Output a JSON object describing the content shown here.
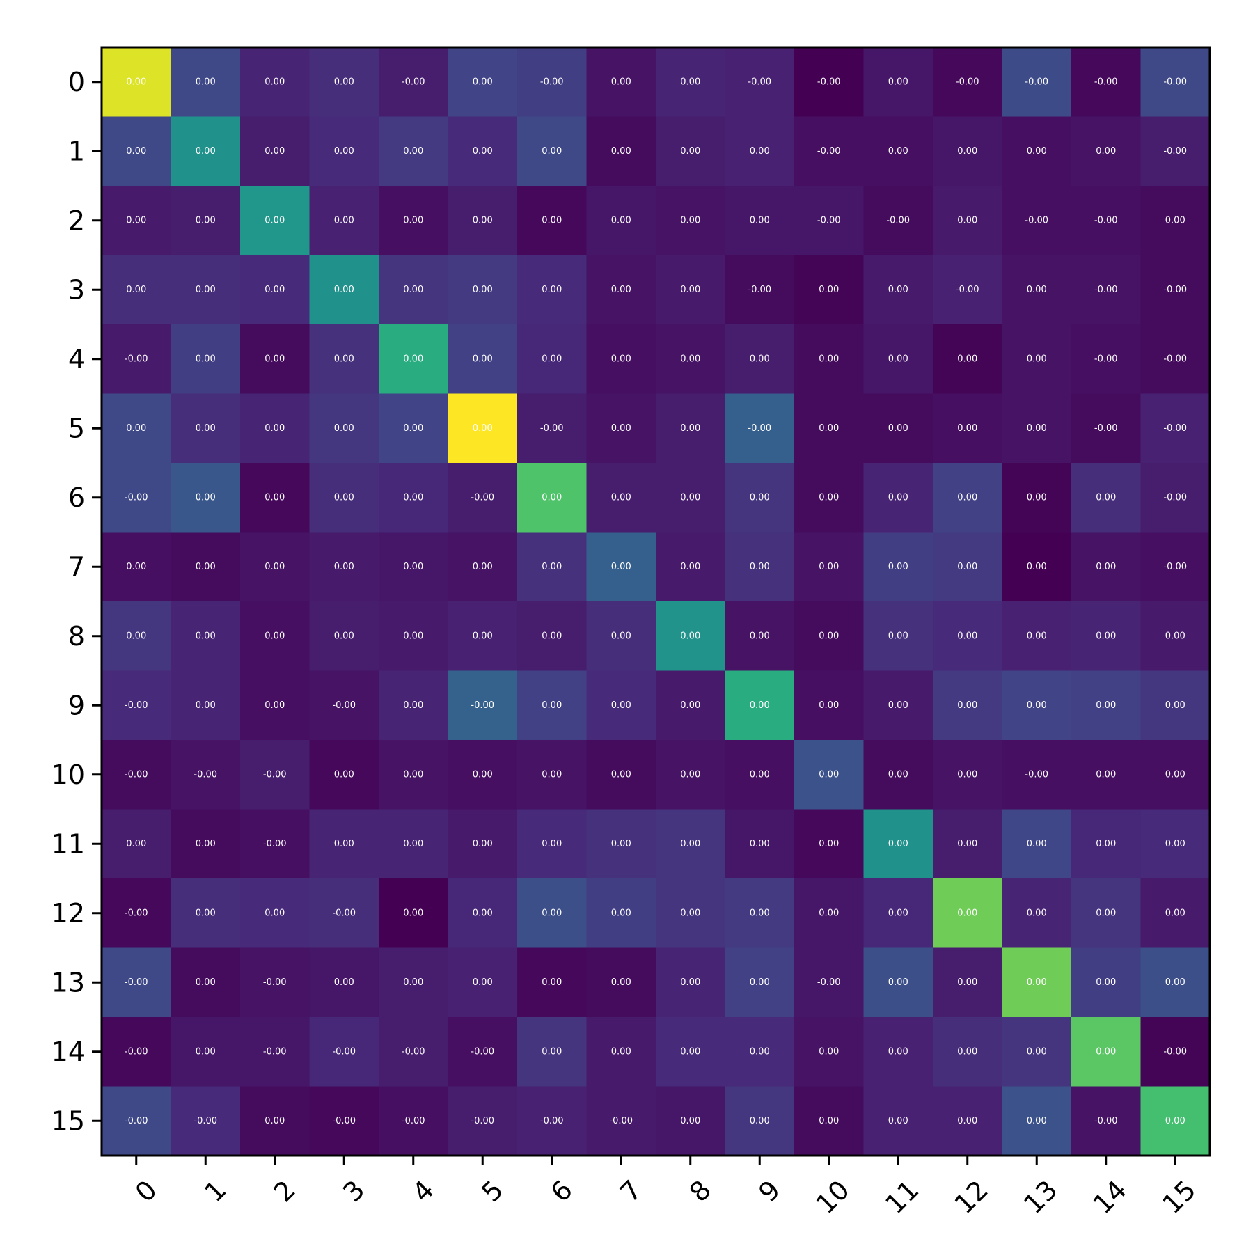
{
  "chart_data": {
    "type": "heatmap",
    "colormap": "viridis",
    "x_categories": [
      "0",
      "1",
      "2",
      "3",
      "4",
      "5",
      "6",
      "7",
      "8",
      "9",
      "10",
      "11",
      "12",
      "13",
      "14",
      "15"
    ],
    "y_categories": [
      "0",
      "1",
      "2",
      "3",
      "4",
      "5",
      "6",
      "7",
      "8",
      "9",
      "10",
      "11",
      "12",
      "13",
      "14",
      "15"
    ],
    "x_tick_rotation_deg": -45,
    "grid": false,
    "legend": "none",
    "intensity": [
      [
        0.95,
        0.22,
        0.1,
        0.13,
        0.08,
        0.2,
        0.18,
        0.05,
        0.1,
        0.09,
        0.0,
        0.06,
        0.02,
        0.23,
        0.02,
        0.22
      ],
      [
        0.22,
        0.5,
        0.08,
        0.12,
        0.17,
        0.12,
        0.22,
        0.03,
        0.08,
        0.09,
        0.04,
        0.04,
        0.06,
        0.04,
        0.05,
        0.08
      ],
      [
        0.07,
        0.08,
        0.52,
        0.09,
        0.04,
        0.08,
        0.02,
        0.06,
        0.05,
        0.06,
        0.06,
        0.03,
        0.07,
        0.04,
        0.04,
        0.03
      ],
      [
        0.13,
        0.13,
        0.12,
        0.5,
        0.15,
        0.17,
        0.12,
        0.05,
        0.07,
        0.03,
        0.01,
        0.07,
        0.09,
        0.05,
        0.05,
        0.03
      ],
      [
        0.07,
        0.18,
        0.03,
        0.14,
        0.62,
        0.19,
        0.11,
        0.04,
        0.05,
        0.08,
        0.03,
        0.06,
        0.01,
        0.05,
        0.04,
        0.03
      ],
      [
        0.22,
        0.13,
        0.1,
        0.16,
        0.2,
        1.0,
        0.08,
        0.05,
        0.08,
        0.3,
        0.03,
        0.03,
        0.04,
        0.05,
        0.03,
        0.09
      ],
      [
        0.22,
        0.27,
        0.02,
        0.13,
        0.11,
        0.08,
        0.72,
        0.08,
        0.08,
        0.15,
        0.03,
        0.1,
        0.19,
        0.01,
        0.13,
        0.08
      ],
      [
        0.04,
        0.03,
        0.05,
        0.07,
        0.06,
        0.05,
        0.14,
        0.3,
        0.07,
        0.14,
        0.05,
        0.18,
        0.17,
        0.0,
        0.05,
        0.04
      ],
      [
        0.16,
        0.1,
        0.04,
        0.08,
        0.07,
        0.09,
        0.08,
        0.13,
        0.51,
        0.05,
        0.03,
        0.14,
        0.12,
        0.09,
        0.1,
        0.07
      ],
      [
        0.12,
        0.1,
        0.04,
        0.05,
        0.1,
        0.31,
        0.19,
        0.12,
        0.07,
        0.62,
        0.04,
        0.07,
        0.17,
        0.2,
        0.19,
        0.16
      ],
      [
        0.03,
        0.05,
        0.08,
        0.02,
        0.05,
        0.04,
        0.05,
        0.03,
        0.05,
        0.04,
        0.25,
        0.03,
        0.05,
        0.04,
        0.04,
        0.04
      ],
      [
        0.08,
        0.03,
        0.04,
        0.1,
        0.1,
        0.07,
        0.12,
        0.14,
        0.15,
        0.06,
        0.02,
        0.5,
        0.08,
        0.21,
        0.11,
        0.12
      ],
      [
        0.02,
        0.13,
        0.12,
        0.13,
        0.0,
        0.11,
        0.24,
        0.18,
        0.15,
        0.17,
        0.06,
        0.11,
        0.78,
        0.1,
        0.15,
        0.07
      ],
      [
        0.22,
        0.03,
        0.05,
        0.06,
        0.08,
        0.09,
        0.02,
        0.03,
        0.1,
        0.19,
        0.06,
        0.24,
        0.08,
        0.78,
        0.18,
        0.24
      ],
      [
        0.02,
        0.06,
        0.06,
        0.11,
        0.08,
        0.04,
        0.15,
        0.07,
        0.12,
        0.12,
        0.05,
        0.09,
        0.13,
        0.15,
        0.74,
        0.01
      ],
      [
        0.22,
        0.12,
        0.03,
        0.02,
        0.04,
        0.08,
        0.09,
        0.07,
        0.06,
        0.16,
        0.03,
        0.09,
        0.09,
        0.25,
        0.05,
        0.7
      ]
    ],
    "cell_labels": [
      [
        "0.00",
        "0.00",
        "0.00",
        "0.00",
        "-0.00",
        "0.00",
        "-0.00",
        "0.00",
        "0.00",
        "-0.00",
        "-0.00",
        "0.00",
        "-0.00",
        "-0.00",
        "-0.00",
        "-0.00"
      ],
      [
        "0.00",
        "0.00",
        "0.00",
        "0.00",
        "0.00",
        "0.00",
        "0.00",
        "0.00",
        "0.00",
        "0.00",
        "-0.00",
        "0.00",
        "0.00",
        "0.00",
        "0.00",
        "-0.00"
      ],
      [
        "0.00",
        "0.00",
        "0.00",
        "0.00",
        "0.00",
        "0.00",
        "0.00",
        "0.00",
        "0.00",
        "0.00",
        "-0.00",
        "-0.00",
        "0.00",
        "-0.00",
        "-0.00",
        "0.00"
      ],
      [
        "0.00",
        "0.00",
        "0.00",
        "0.00",
        "0.00",
        "0.00",
        "0.00",
        "0.00",
        "0.00",
        "-0.00",
        "0.00",
        "0.00",
        "-0.00",
        "0.00",
        "-0.00",
        "-0.00"
      ],
      [
        "-0.00",
        "0.00",
        "0.00",
        "0.00",
        "0.00",
        "0.00",
        "0.00",
        "0.00",
        "0.00",
        "0.00",
        "0.00",
        "0.00",
        "0.00",
        "0.00",
        "-0.00",
        "-0.00"
      ],
      [
        "0.00",
        "0.00",
        "0.00",
        "0.00",
        "0.00",
        "0.00",
        "-0.00",
        "0.00",
        "0.00",
        "-0.00",
        "0.00",
        "0.00",
        "0.00",
        "0.00",
        "-0.00",
        "-0.00"
      ],
      [
        "-0.00",
        "0.00",
        "0.00",
        "0.00",
        "0.00",
        "-0.00",
        "0.00",
        "0.00",
        "0.00",
        "0.00",
        "0.00",
        "0.00",
        "0.00",
        "0.00",
        "0.00",
        "-0.00"
      ],
      [
        "0.00",
        "0.00",
        "0.00",
        "0.00",
        "0.00",
        "0.00",
        "0.00",
        "0.00",
        "0.00",
        "0.00",
        "0.00",
        "0.00",
        "0.00",
        "0.00",
        "0.00",
        "-0.00"
      ],
      [
        "0.00",
        "0.00",
        "0.00",
        "0.00",
        "0.00",
        "0.00",
        "0.00",
        "0.00",
        "0.00",
        "0.00",
        "0.00",
        "0.00",
        "0.00",
        "0.00",
        "0.00",
        "0.00"
      ],
      [
        "-0.00",
        "0.00",
        "0.00",
        "-0.00",
        "0.00",
        "-0.00",
        "0.00",
        "0.00",
        "0.00",
        "0.00",
        "0.00",
        "0.00",
        "0.00",
        "0.00",
        "0.00",
        "0.00"
      ],
      [
        "-0.00",
        "-0.00",
        "-0.00",
        "0.00",
        "0.00",
        "0.00",
        "0.00",
        "0.00",
        "0.00",
        "0.00",
        "0.00",
        "0.00",
        "0.00",
        "-0.00",
        "0.00",
        "0.00"
      ],
      [
        "0.00",
        "0.00",
        "-0.00",
        "0.00",
        "0.00",
        "0.00",
        "0.00",
        "0.00",
        "0.00",
        "0.00",
        "0.00",
        "0.00",
        "0.00",
        "0.00",
        "0.00",
        "0.00"
      ],
      [
        "-0.00",
        "0.00",
        "0.00",
        "-0.00",
        "0.00",
        "0.00",
        "0.00",
        "0.00",
        "0.00",
        "0.00",
        "0.00",
        "0.00",
        "0.00",
        "0.00",
        "0.00",
        "0.00"
      ],
      [
        "-0.00",
        "0.00",
        "-0.00",
        "0.00",
        "0.00",
        "0.00",
        "0.00",
        "0.00",
        "0.00",
        "0.00",
        "-0.00",
        "0.00",
        "0.00",
        "0.00",
        "0.00",
        "0.00"
      ],
      [
        "-0.00",
        "0.00",
        "-0.00",
        "-0.00",
        "-0.00",
        "-0.00",
        "0.00",
        "0.00",
        "0.00",
        "0.00",
        "0.00",
        "0.00",
        "0.00",
        "0.00",
        "0.00",
        "-0.00"
      ],
      [
        "-0.00",
        "-0.00",
        "0.00",
        "-0.00",
        "-0.00",
        "-0.00",
        "-0.00",
        "-0.00",
        "0.00",
        "0.00",
        "0.00",
        "0.00",
        "0.00",
        "0.00",
        "-0.00",
        "0.00"
      ]
    ]
  }
}
